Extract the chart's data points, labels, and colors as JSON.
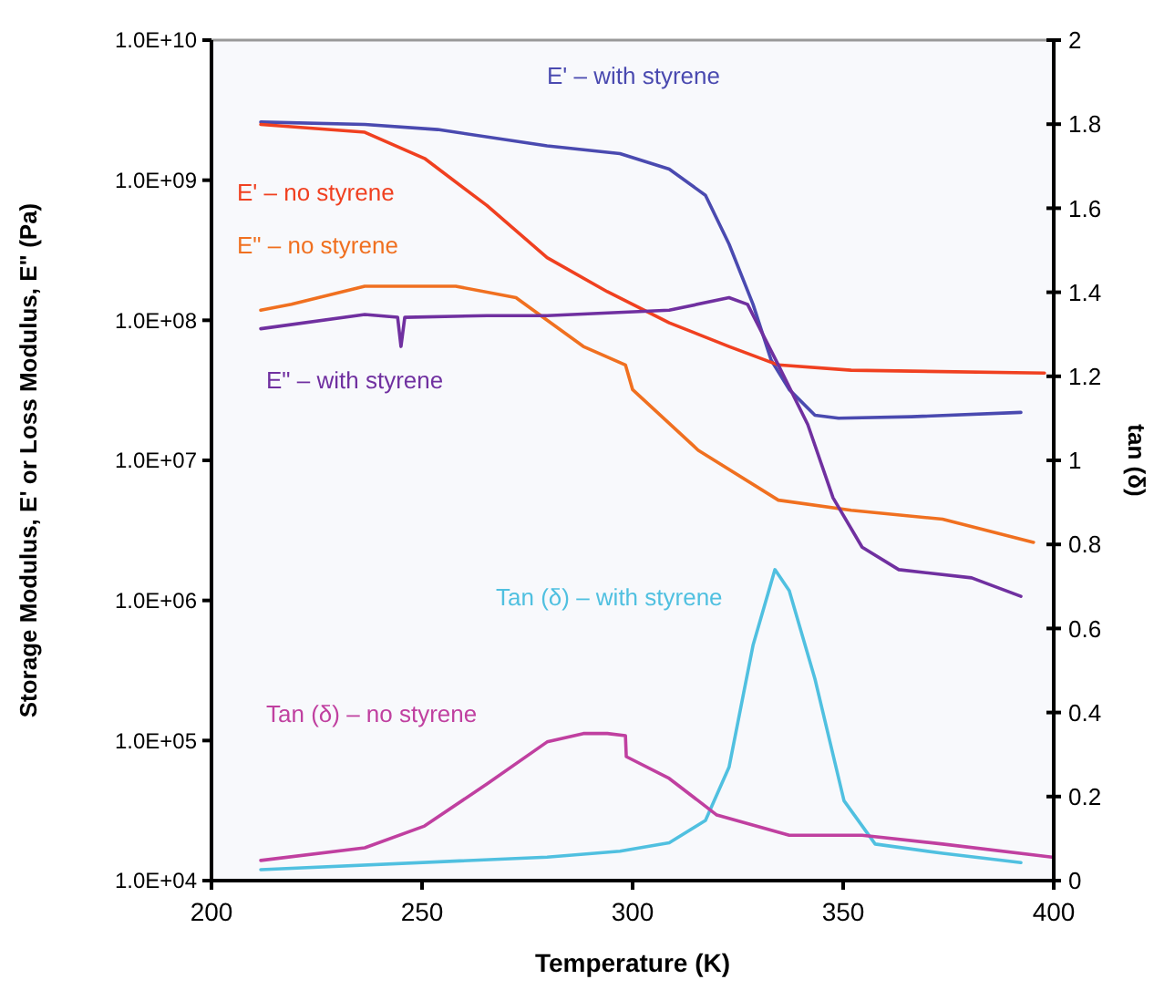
{
  "chart_data": {
    "type": "line",
    "xlabel": "Temperature (K)",
    "ylabel": "Storage Modulus, E' or Loss Modulus, E\" (Pa)",
    "y2label": "tan (δ)",
    "xlim": [
      200,
      400
    ],
    "xticks": [
      200,
      250,
      300,
      350,
      400
    ],
    "ylim": [
      10000.0,
      10000000000.0
    ],
    "yticks": [
      {
        "value": 10000.0,
        "label": "1.0E+04"
      },
      {
        "value": 100000.0,
        "label": "1.0E+05"
      },
      {
        "value": 1000000.0,
        "label": "1.0E+06"
      },
      {
        "value": 10000000.0,
        "label": "1.0E+07"
      },
      {
        "value": 100000000.0,
        "label": "1.0E+08"
      },
      {
        "value": 1000000000.0,
        "label": "1.0E+09"
      },
      {
        "value": 10000000000.0,
        "label": "1.0E+10"
      }
    ],
    "y2lim": [
      0,
      2
    ],
    "y2ticks": [
      0,
      0.2,
      0.4,
      0.6,
      0.8,
      1,
      1.2,
      1.4,
      1.6,
      1.8,
      2
    ],
    "log": "y",
    "grid": false,
    "marker": "none",
    "line_style": "solid",
    "series": [
      {
        "name": "E' – with styrene",
        "color": "#4a4ab0",
        "x": [
          211.7,
          236.4,
          253.7,
          279.7,
          297,
          308.7,
          317.3,
          322.9,
          328.6,
          332.9,
          337.2,
          343.3,
          348.9,
          366.2,
          392.2
        ],
        "values": [
          2600000000.0,
          2500000000.0,
          2300000000.0,
          1760000000.0,
          1550000000.0,
          1200000000.0,
          780000000.0,
          350000000.0,
          130000000.0,
          52000000.0,
          32000000.0,
          21000000.0,
          20000000.0,
          20500000.0,
          22000000.0
        ]
      },
      {
        "name": "E' – no styrene",
        "color": "#f04020",
        "x": [
          211.7,
          236.4,
          250.6,
          265.4,
          279.7,
          294,
          308.7,
          322.9,
          334.6,
          351.9,
          397.8
        ],
        "values": [
          2500000000.0,
          2200000000.0,
          1430000000.0,
          660000000.0,
          280000000.0,
          160000000.0,
          96000000.0,
          65000000.0,
          48000000.0,
          44000000.0,
          42000000.0
        ]
      },
      {
        "name": "E\" – no styrene",
        "color": "#f07020",
        "x": [
          211.7,
          219,
          236.4,
          258,
          272.3,
          288.3,
          298.3,
          300,
          315.6,
          334.6,
          351.9,
          373.6,
          395.2
        ],
        "values": [
          118000000.0,
          130000000.0,
          175000000.0,
          175000000.0,
          145000000.0,
          65000000.0,
          48000000.0,
          32000000.0,
          11800000.0,
          5200000.0,
          4400000.0,
          3800000.0,
          2600000.0
        ]
      },
      {
        "name": "E\" – with styrene",
        "color": "#7030a0",
        "x": [
          211.7,
          236.4,
          244.2,
          245,
          245.9,
          265.4,
          279.7,
          308.7,
          322.9,
          327.3,
          334.6,
          341.6,
          347.6,
          354.5,
          363.2,
          380.5,
          392.2
        ],
        "values": [
          87000000.0,
          110000000.0,
          105000000.0,
          65000000.0,
          105000000.0,
          108000000.0,
          108000000.0,
          118000000.0,
          145000000.0,
          130000000.0,
          48000000.0,
          18000000.0,
          5400000.0,
          2400000.0,
          1660000.0,
          1450000.0,
          1070000.0
        ]
      },
      {
        "name": "Tan (δ) – with styrene",
        "color": "#50c0e0",
        "axis": "y2",
        "x": [
          211.7,
          279.7,
          297,
          308.7,
          317.3,
          322.9,
          328.6,
          333.8,
          337.2,
          343.3,
          350.2,
          357.6,
          373.6,
          392.2
        ],
        "values": [
          0.026,
          0.056,
          0.07,
          0.09,
          0.143,
          0.27,
          0.56,
          0.74,
          0.69,
          0.48,
          0.19,
          0.087,
          0.065,
          0.043
        ]
      },
      {
        "name": "Tan (δ) – no styrene",
        "color": "#c040a0",
        "axis": "y2",
        "x": [
          211.7,
          236.4,
          250.6,
          265.4,
          279.7,
          288.3,
          294,
          298.3,
          298.5,
          308.7,
          320,
          337.2,
          354.5,
          373.6,
          399.6
        ],
        "values": [
          0.048,
          0.078,
          0.13,
          0.23,
          0.33,
          0.35,
          0.35,
          0.345,
          0.295,
          0.243,
          0.156,
          0.108,
          0.108,
          0.087,
          0.056
        ]
      }
    ]
  }
}
